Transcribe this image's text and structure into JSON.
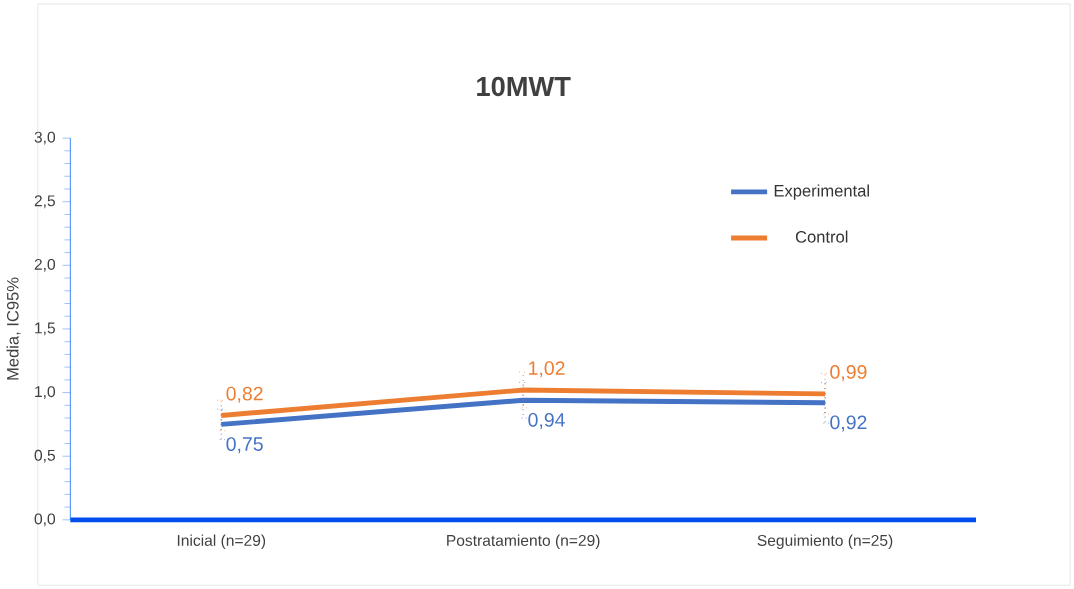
{
  "chart_data": {
    "type": "line",
    "title": "10MWT",
    "ylabel": "Media, IC95%",
    "categories": [
      "Inicial (n=29)",
      "Postratamiento (n=29)",
      "Seguimiento (n=25)"
    ],
    "series": [
      {
        "name": "Experimental",
        "color": "#4472c4",
        "values": [
          0.75,
          0.94,
          0.92
        ],
        "errors": [
          0.12,
          0.14,
          0.16
        ],
        "value_labels": [
          "0,75",
          "0,94",
          "0,92"
        ]
      },
      {
        "name": "Control",
        "color": "#ed7d31",
        "values": [
          0.82,
          1.02,
          0.99
        ],
        "errors": [
          0.12,
          0.14,
          0.16
        ],
        "value_labels": [
          "0,82",
          "1,02",
          "0,99"
        ]
      }
    ],
    "ylim": [
      0,
      3
    ],
    "yticks": [
      {
        "value": 0,
        "label": "0,0"
      },
      {
        "value": 0.5,
        "label": "0,5"
      },
      {
        "value": 1,
        "label": "1,0"
      },
      {
        "value": 1.5,
        "label": "1,5"
      },
      {
        "value": 2,
        "label": "2,0"
      },
      {
        "value": 2.5,
        "label": "2,5"
      },
      {
        "value": 3,
        "label": "3,0"
      }
    ],
    "legend": "top right",
    "grid": false,
    "marker": "none",
    "line_style": "solid"
  }
}
